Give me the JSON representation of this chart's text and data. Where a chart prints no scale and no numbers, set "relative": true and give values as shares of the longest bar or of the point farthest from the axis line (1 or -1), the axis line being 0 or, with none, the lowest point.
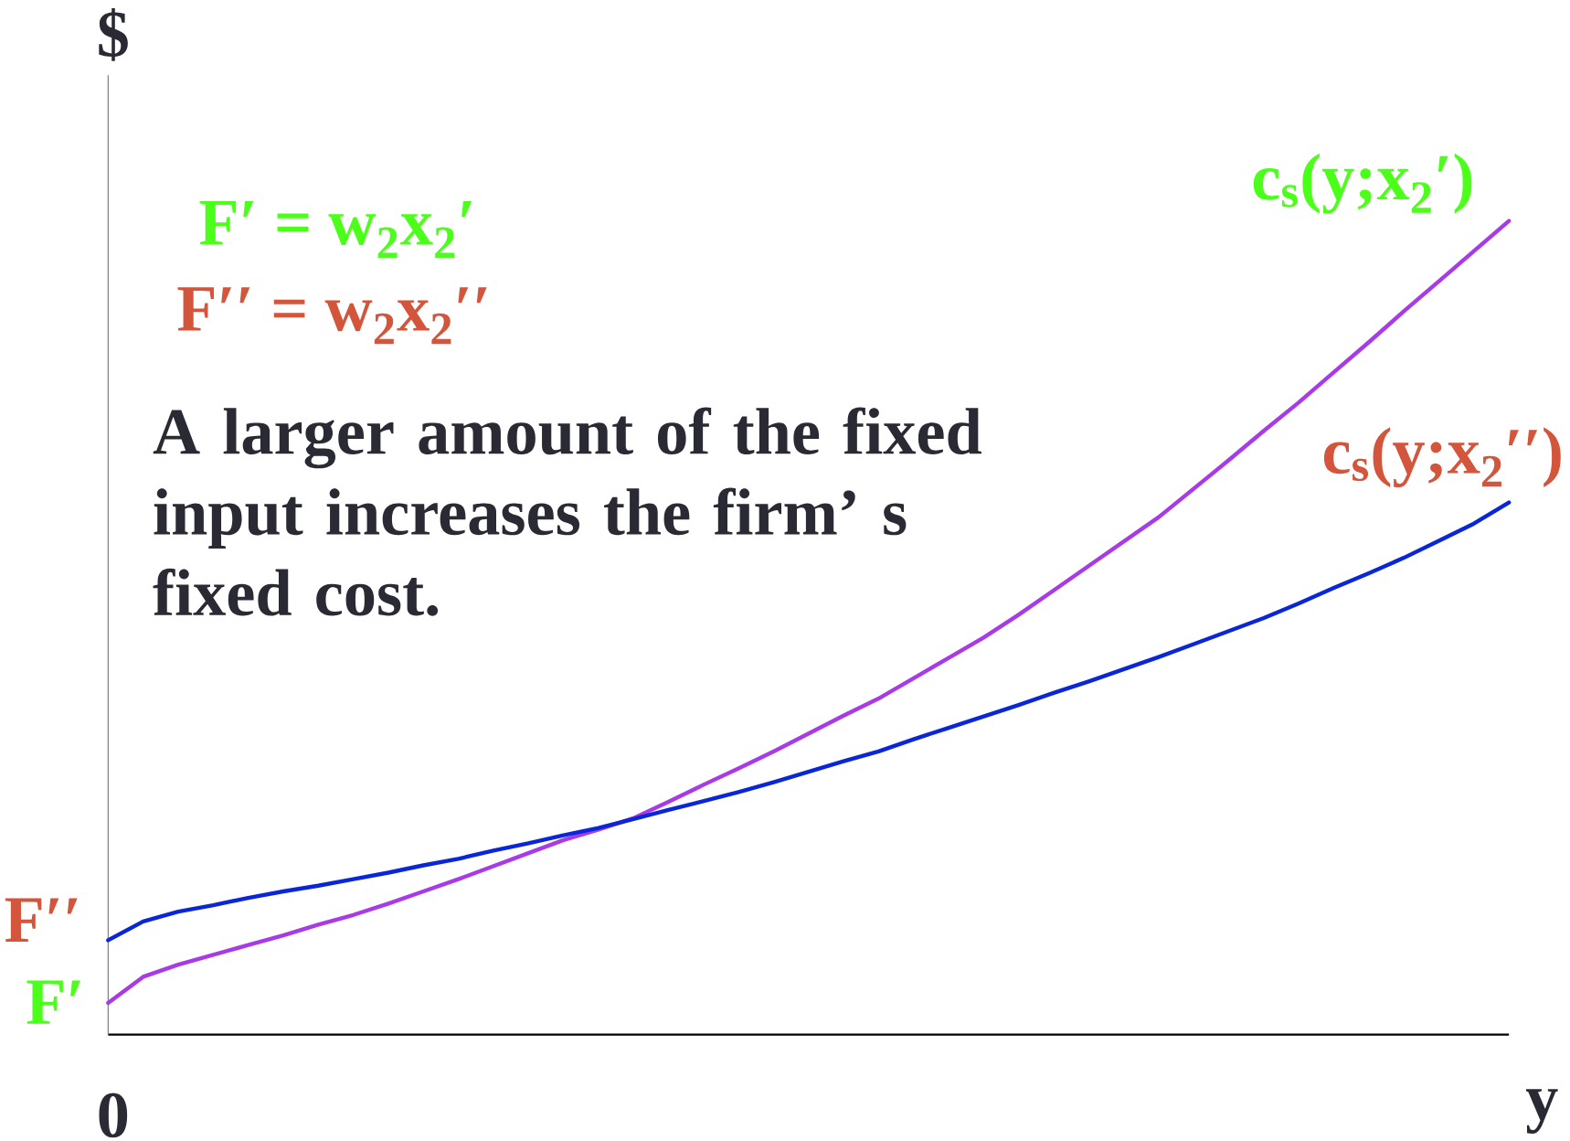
{
  "chart_data": {
    "type": "line",
    "relative": true,
    "xlabel": "y",
    "ylabel": "$",
    "categories": [
      null,
      null,
      null,
      null,
      null,
      null,
      null,
      null,
      null,
      null,
      null,
      null,
      null,
      null,
      null,
      null,
      null,
      null,
      null,
      null,
      null,
      null,
      null,
      null,
      null,
      null,
      null,
      null,
      null,
      null,
      null,
      null,
      null,
      null,
      null,
      null,
      null,
      null,
      null,
      null,
      null
    ],
    "series": [
      {
        "name": "c$_{s}$(y;x$_{2}$′)",
        "color": "#a83ae8",
        "values": [
          0.039,
          0.071,
          0.086,
          0.098,
          0.11,
          0.122,
          0.135,
          0.147,
          0.161,
          0.176,
          0.191,
          0.207,
          0.223,
          0.239,
          0.252,
          0.266,
          0.286,
          0.307,
          0.327,
          0.348,
          0.37,
          0.392,
          0.413,
          0.438,
          0.463,
          0.488,
          0.516,
          0.546,
          0.576,
          0.606,
          0.636,
          0.671,
          0.706,
          0.742,
          0.777,
          0.814,
          0.851,
          0.889,
          0.926,
          0.963,
          1.0
        ]
      },
      {
        "name": "c$_{s}$(y;x$_{2}$′′)",
        "color": "#0a26d9",
        "values": [
          0.116,
          0.139,
          0.151,
          0.159,
          0.168,
          0.176,
          0.183,
          0.191,
          0.199,
          0.208,
          0.216,
          0.226,
          0.235,
          0.245,
          0.254,
          0.265,
          0.276,
          0.287,
          0.298,
          0.31,
          0.323,
          0.336,
          0.348,
          0.363,
          0.377,
          0.391,
          0.405,
          0.42,
          0.434,
          0.449,
          0.464,
          0.48,
          0.496,
          0.512,
          0.53,
          0.549,
          0.567,
          0.586,
          0.607,
          0.628,
          0.654
        ]
      }
    ],
    "annotations": [
      "F′ = w$_{2}$x$_{2}$′",
      "F′′ = w$_{2}$x$_{2}$′′",
      "A larger amount of the fixed input increases the firm’ s fixed cost.",
      "F′′",
      "F′",
      "0"
    ]
  }
}
